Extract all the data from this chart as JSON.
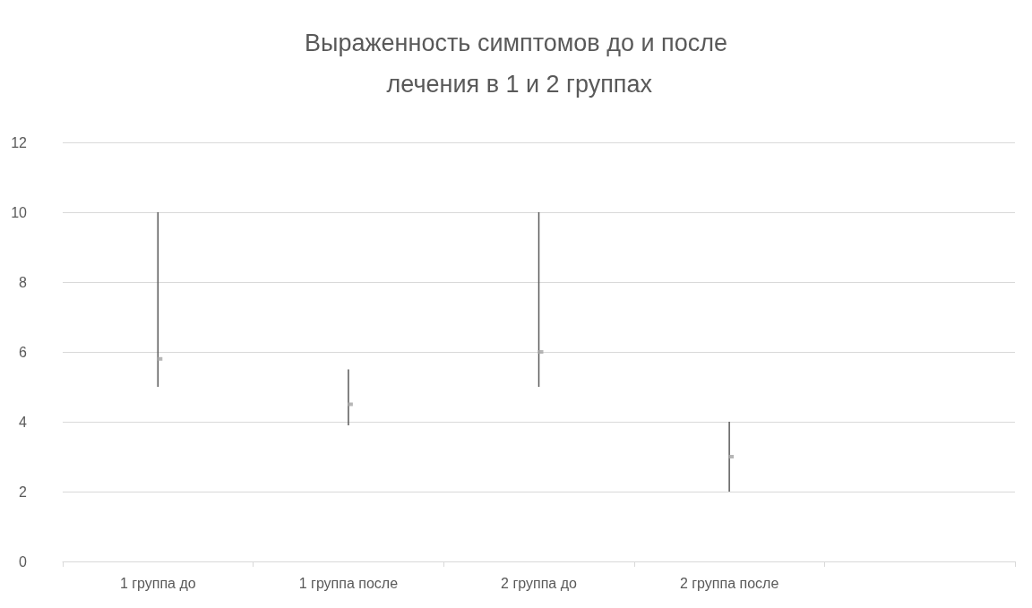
{
  "chart_data": {
    "type": "scatter",
    "title": "Выраженность симптомов до и после лечения в 1 и 2 группах",
    "categories": [
      "1 группа до",
      "1 группа после",
      "2 группа до",
      "2 группа после",
      null
    ],
    "series": [
      {
        "color": "#a5a5a5",
        "values": [
          5.8,
          4.5,
          6,
          3,
          null
        ],
        "errors": [
          [
            5,
            10
          ],
          [
            3.9,
            5.5
          ],
          [
            5,
            10
          ],
          [
            2,
            4
          ],
          null
        ]
      }
    ],
    "ylim": [
      0,
      12
    ],
    "yticks": [
      0,
      2,
      4,
      6,
      8,
      10,
      12
    ],
    "grid": "y",
    "marker": "square"
  }
}
